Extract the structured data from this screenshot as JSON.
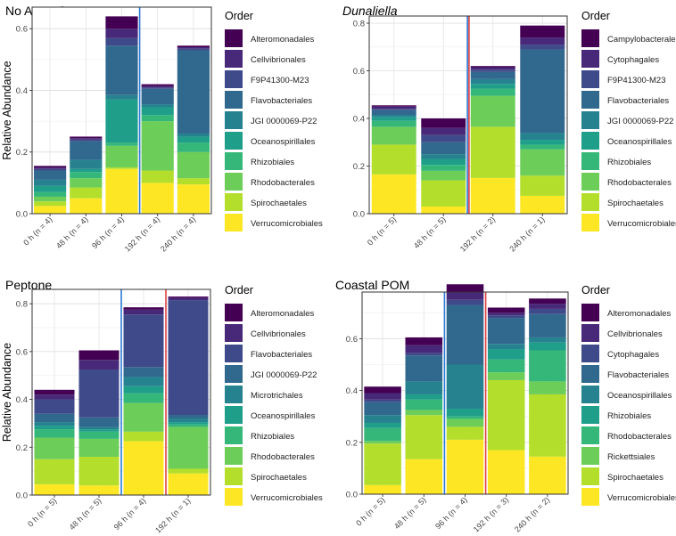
{
  "ylabel": "Relative Abundance",
  "legend_title": "Order",
  "colors": {
    "viridis10": [
      "#440154",
      "#482878",
      "#3E4A89",
      "#31688E",
      "#26828E",
      "#1F9E89",
      "#35B779",
      "#6DCD59",
      "#B4DE2C",
      "#FDE725"
    ]
  },
  "chart_data": [
    {
      "type": "bar",
      "stacked": true,
      "title": "No Amendment",
      "title_italic": false,
      "ylabel": "Relative Abundance",
      "ylim": [
        0,
        0.67
      ],
      "yticks": [
        "0.0",
        "0.2",
        "0.4",
        "0.6"
      ],
      "ytick_values": [
        0,
        0.2,
        0.4,
        0.6
      ],
      "categories": [
        "0 h (n = 4)",
        "48 h (n = 4)",
        "96 h (n = 4)",
        "192 h (n = 4)",
        "240 h (n = 4)"
      ],
      "legend_title": "Order",
      "legend_position": "right",
      "vlines": [
        {
          "after_index": 2,
          "color": "#2C7BD6"
        }
      ],
      "series": [
        {
          "name": "Alteromonadales",
          "values": [
            0.005,
            0.005,
            0.04,
            0.006,
            0.005
          ]
        },
        {
          "name": "Cellvibrionales",
          "values": [
            0.005,
            0.005,
            0.03,
            0.005,
            0.005
          ]
        },
        {
          "name": "F9P41300-M23",
          "values": [
            0.005,
            0.005,
            0.025,
            0.004,
            0.005
          ]
        },
        {
          "name": "Flavobacteriales",
          "values": [
            0.03,
            0.06,
            0.16,
            0.05,
            0.27
          ]
        },
        {
          "name": "JGI 0000069-P22",
          "values": [
            0.02,
            0.03,
            0.015,
            0.01,
            0.01
          ]
        },
        {
          "name": "Oceanospirillales",
          "values": [
            0.02,
            0.01,
            0.14,
            0.025,
            0.02
          ]
        },
        {
          "name": "Rhizobiales",
          "values": [
            0.015,
            0.02,
            0.01,
            0.02,
            0.03
          ]
        },
        {
          "name": "Rhodobacterales",
          "values": [
            0.015,
            0.03,
            0.07,
            0.16,
            0.085
          ]
        },
        {
          "name": "Spirochaetales",
          "values": [
            0.015,
            0.035,
            0.005,
            0.04,
            0.02
          ]
        },
        {
          "name": "Verrucomicrobiales",
          "values": [
            0.025,
            0.05,
            0.145,
            0.1,
            0.095
          ]
        }
      ]
    },
    {
      "type": "bar",
      "stacked": true,
      "title": "Dunaliella",
      "title_italic": true,
      "ylabel": "",
      "ylim": [
        0,
        0.83
      ],
      "yticks": [
        "0.0",
        "0.2",
        "0.4",
        "0.6",
        "0.8"
      ],
      "ytick_values": [
        0,
        0.2,
        0.4,
        0.6,
        0.8
      ],
      "categories": [
        "0 h (n = 5)",
        "48 h (n = 5)",
        "192 h (n = 2)",
        "240 h (n = 1)"
      ],
      "legend_title": "Order",
      "legend_position": "right",
      "vlines": [
        {
          "after_index": 1,
          "color": "#2C7BD6",
          "offset": -0.9
        },
        {
          "after_index": 1,
          "color": "#E04040",
          "offset": 0.9
        }
      ],
      "series": [
        {
          "name": "Campylobacterales",
          "values": [
            0.005,
            0.04,
            0.005,
            0.05
          ]
        },
        {
          "name": "Cytophagales",
          "values": [
            0.01,
            0.03,
            0.01,
            0.03
          ]
        },
        {
          "name": "F9P41300-M23",
          "values": [
            0.005,
            0.03,
            0.01,
            0.02
          ]
        },
        {
          "name": "Flavobacteriales",
          "values": [
            0.02,
            0.05,
            0.03,
            0.35
          ]
        },
        {
          "name": "JGI 0000069-P22",
          "values": [
            0.01,
            0.02,
            0.02,
            0.03
          ]
        },
        {
          "name": "Oceanospirillales",
          "values": [
            0.015,
            0.025,
            0.02,
            0.02
          ]
        },
        {
          "name": "Rhizobiales",
          "values": [
            0.025,
            0.025,
            0.03,
            0.02
          ]
        },
        {
          "name": "Rhodobacterales",
          "values": [
            0.075,
            0.04,
            0.13,
            0.11
          ]
        },
        {
          "name": "Spirochaetales",
          "values": [
            0.125,
            0.11,
            0.215,
            0.085
          ]
        },
        {
          "name": "Verrucomicrobiales",
          "values": [
            0.165,
            0.03,
            0.15,
            0.075
          ]
        }
      ]
    },
    {
      "type": "bar",
      "stacked": true,
      "title": "Peptone",
      "title_italic": false,
      "ylabel": "Relative Abundance",
      "ylim": [
        0,
        0.86
      ],
      "yticks": [
        "0.0",
        "0.2",
        "0.4",
        "0.6",
        "0.8"
      ],
      "ytick_values": [
        0,
        0.2,
        0.4,
        0.6,
        0.8
      ],
      "categories": [
        "0 h (n = 5)",
        "48 h (n = 5)",
        "96 h (n = 4)",
        "192 h (n = 1)"
      ],
      "legend_title": "Order",
      "legend_position": "right",
      "vlines": [
        {
          "after_index": 1,
          "color": "#2C7BD6"
        },
        {
          "after_index": 2,
          "color": "#E04040"
        }
      ],
      "series": [
        {
          "name": "Alteromonadales",
          "values": [
            0.02,
            0.04,
            0.01,
            0.005
          ]
        },
        {
          "name": "Cellvibrionales",
          "values": [
            0.02,
            0.04,
            0.02,
            0.01
          ]
        },
        {
          "name": "Flavobacteriales",
          "values": [
            0.06,
            0.2,
            0.22,
            0.48
          ]
        },
        {
          "name": "JGI 0000069-P22",
          "values": [
            0.035,
            0.04,
            0.04,
            0.015
          ]
        },
        {
          "name": "Microtrichales",
          "values": [
            0.015,
            0.01,
            0.04,
            0.015
          ]
        },
        {
          "name": "Oceanospirillales",
          "values": [
            0.015,
            0.01,
            0.03,
            0.01
          ]
        },
        {
          "name": "Rhizobiales",
          "values": [
            0.035,
            0.03,
            0.04,
            0.01
          ]
        },
        {
          "name": "Rhodobacterales",
          "values": [
            0.09,
            0.075,
            0.12,
            0.175
          ]
        },
        {
          "name": "Spirochaetales",
          "values": [
            0.105,
            0.12,
            0.04,
            0.02
          ]
        },
        {
          "name": "Verrucomicrobiales",
          "values": [
            0.045,
            0.04,
            0.225,
            0.09
          ]
        }
      ]
    },
    {
      "type": "bar",
      "stacked": true,
      "title": "Coastal POM",
      "title_italic": false,
      "ylabel": "",
      "ylim": [
        0,
        0.78
      ],
      "yticks": [
        "0.0",
        "0.2",
        "0.4",
        "0.6"
      ],
      "ytick_values": [
        0,
        0.2,
        0.4,
        0.6
      ],
      "categories": [
        "0 h (n = 5)",
        "48 h (n = 5)",
        "96 h (n = 4)",
        "192 h (n = 3)",
        "240 h (n = 2)"
      ],
      "legend_title": "Order",
      "legend_position": "right",
      "vlines": [
        {
          "after_index": 1,
          "color": "#2C7BD6"
        },
        {
          "after_index": 2,
          "color": "#E04040"
        }
      ],
      "series": [
        {
          "name": "Alteromonadales",
          "values": [
            0.025,
            0.03,
            0.03,
            0.02,
            0.02
          ]
        },
        {
          "name": "Cellvibrionales",
          "values": [
            0.025,
            0.03,
            0.03,
            0.01,
            0.02
          ]
        },
        {
          "name": "Cytophagales",
          "values": [
            0.01,
            0.01,
            0.02,
            0.01,
            0.02
          ]
        },
        {
          "name": "Flavobacteriales",
          "values": [
            0.05,
            0.1,
            0.23,
            0.1,
            0.09
          ]
        },
        {
          "name": "Oceanospirillales",
          "values": [
            0.03,
            0.05,
            0.17,
            0.02,
            0.02
          ]
        },
        {
          "name": "Rhizobiales",
          "values": [
            0.02,
            0.02,
            0.03,
            0.04,
            0.03
          ]
        },
        {
          "name": "Rhodobacterales",
          "values": [
            0.05,
            0.04,
            0.01,
            0.05,
            0.12
          ]
        },
        {
          "name": "Rickettsiales",
          "values": [
            0.01,
            0.02,
            0.03,
            0.03,
            0.05
          ]
        },
        {
          "name": "Spirochaetales",
          "values": [
            0.16,
            0.17,
            0.05,
            0.27,
            0.24
          ]
        },
        {
          "name": "Verrucomicrobiales",
          "values": [
            0.035,
            0.135,
            0.21,
            0.17,
            0.145
          ]
        }
      ]
    }
  ]
}
